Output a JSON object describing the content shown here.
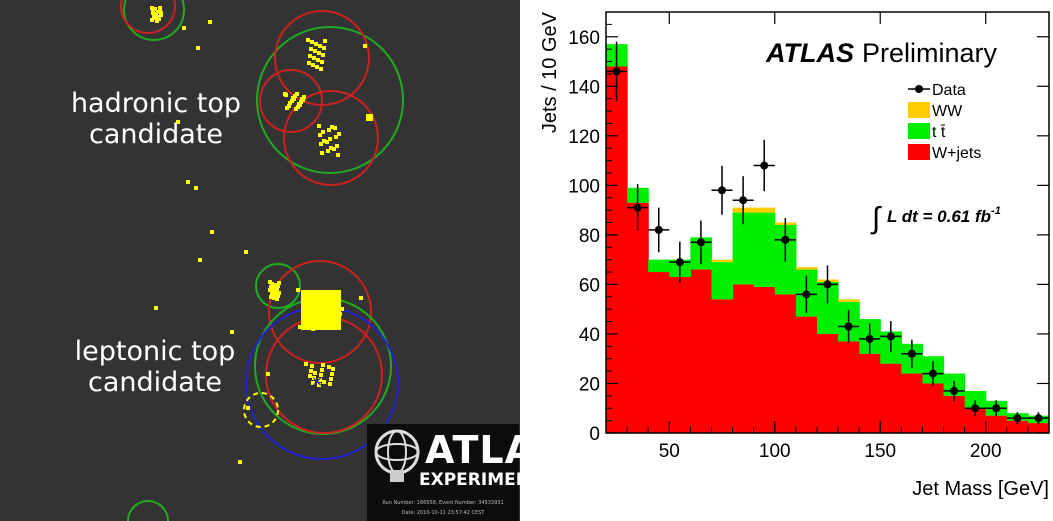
{
  "event_display": {
    "labels": {
      "hadronic_line1": "hadronic top",
      "hadronic_line2": "candidate",
      "leptonic_line1": "leptonic top",
      "leptonic_line2": "candidate"
    },
    "logo": {
      "word": "ATLAS",
      "sub": "EXPERIMENT",
      "run_info": "Run Number: 166658, Event Number: 34533931",
      "date": "Date: 2010-10-11 23:57:42 CEST"
    },
    "colors": {
      "background": "#333333",
      "deposits": "#ffff00",
      "circle_red": "#cc2222",
      "circle_green": "#22aa22",
      "circle_blue": "#2222cc",
      "circle_yellow_dashed": "#ffff00"
    }
  },
  "chart_data": {
    "type": "bar",
    "subtype": "stacked-histogram",
    "ylabel": "Jets / 10 GeV",
    "xlabel": "Jet Mass [GeV]",
    "xlim": [
      20,
      230
    ],
    "ylim": [
      0,
      170
    ],
    "x_ticks": [
      50,
      100,
      150,
      200
    ],
    "y_ticks": [
      0,
      20,
      40,
      60,
      80,
      100,
      120,
      140,
      160
    ],
    "bin_edges": [
      20,
      30,
      40,
      50,
      60,
      70,
      80,
      90,
      100,
      110,
      120,
      130,
      140,
      150,
      160,
      170,
      180,
      190,
      200,
      210,
      220,
      230
    ],
    "series": [
      {
        "name": "W+jets",
        "color": "#ff0000",
        "values": [
          148,
          93,
          65,
          63,
          66,
          54,
          60,
          59,
          56,
          47,
          40,
          37,
          32,
          28,
          24,
          20,
          15,
          10,
          7,
          5,
          4
        ]
      },
      {
        "name": "t t̄",
        "color": "#00ee00",
        "values": [
          9,
          6,
          5,
          7,
          13,
          15,
          29,
          30,
          28,
          19,
          21,
          16,
          14,
          13,
          12,
          11,
          9,
          7,
          6,
          3,
          3
        ]
      },
      {
        "name": "WW",
        "color": "#ffcc00",
        "values": [
          0,
          0,
          0,
          0,
          0,
          1,
          2,
          2,
          1,
          1,
          1,
          1,
          0,
          0,
          0,
          0,
          0,
          0,
          0,
          0,
          0
        ]
      }
    ],
    "data_points": {
      "name": "Data",
      "x": [
        25,
        35,
        45,
        55,
        65,
        75,
        85,
        95,
        105,
        115,
        125,
        135,
        145,
        155,
        165,
        175,
        185,
        195,
        205,
        215,
        225
      ],
      "y": [
        146,
        91,
        82,
        69,
        77,
        98,
        94,
        108,
        78,
        56,
        60,
        43,
        38,
        39,
        32,
        24,
        17,
        10,
        10,
        6,
        6
      ],
      "yerr": [
        12,
        9.5,
        9,
        8.3,
        8.8,
        9.9,
        9.7,
        10.4,
        8.8,
        7.5,
        7.7,
        6.6,
        6.2,
        6.2,
        5.7,
        4.9,
        4.1,
        3.2,
        3.2,
        2.4,
        2.4
      ]
    },
    "legend": {
      "placement": "top-right",
      "entries": [
        "Data",
        "WW",
        "t t̄",
        "W+jets"
      ]
    },
    "annotations": {
      "experiment": "ATLAS",
      "status": "Preliminary",
      "luminosity": "∫ L dt = 0.61 fb",
      "luminosity_exp": "-1"
    },
    "grid": false
  }
}
